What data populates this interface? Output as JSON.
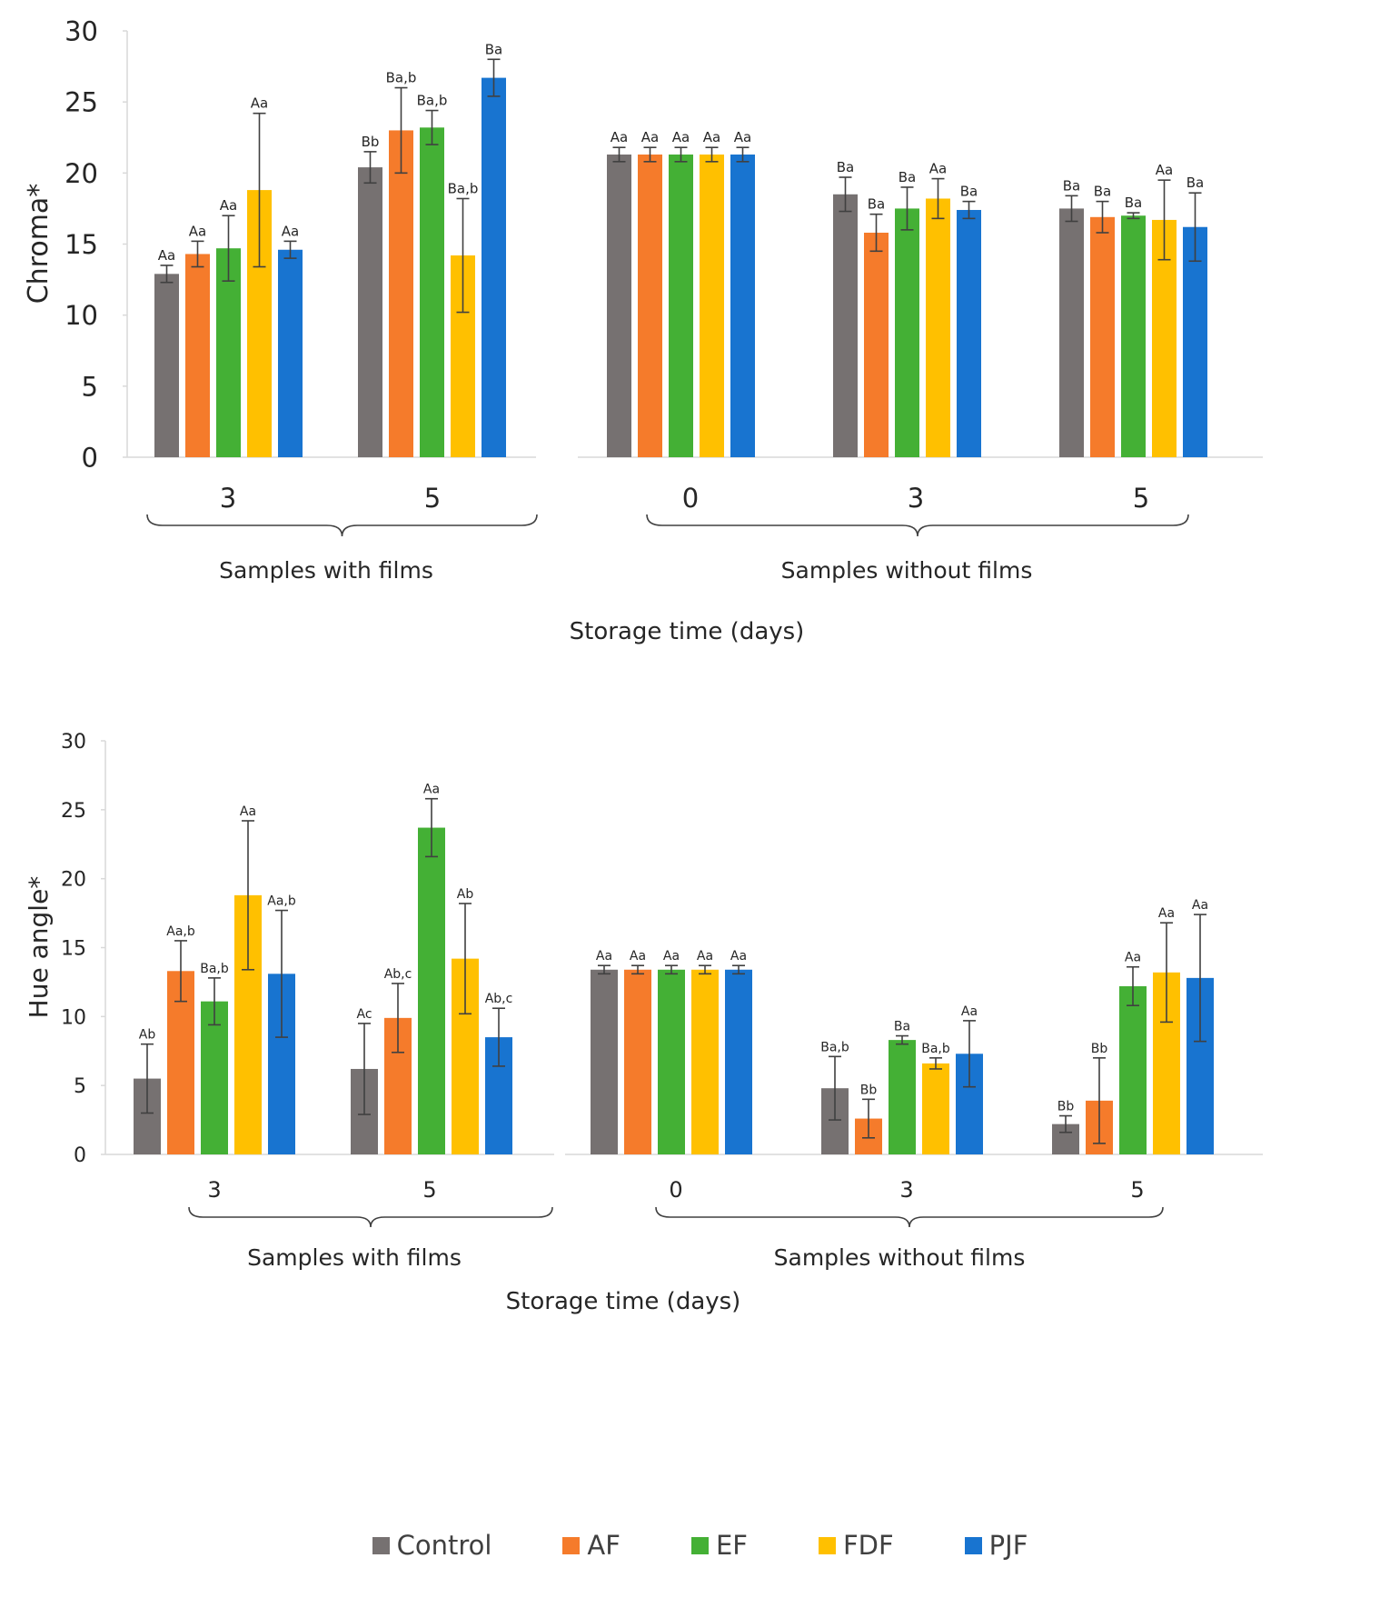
{
  "colors": {
    "Control": "#767171",
    "AF": "#f57b2b",
    "EF": "#44b035",
    "FDF": "#ffc000",
    "PJF": "#1874d0",
    "axis": "#d9d9d9",
    "text": "#262626",
    "error": "#404040"
  },
  "legend": [
    {
      "name": "Control"
    },
    {
      "name": "AF"
    },
    {
      "name": "EF"
    },
    {
      "name": "FDF"
    },
    {
      "name": "PJF"
    }
  ],
  "chart_data": [
    {
      "type": "bar",
      "ylabel": "Chroma*",
      "xlabel": "Storage time (days)",
      "ylim": [
        0,
        30
      ],
      "yticks": [
        0,
        5,
        10,
        15,
        20,
        25,
        30
      ],
      "series_names": [
        "Control",
        "AF",
        "EF",
        "FDF",
        "PJF"
      ],
      "panels": [
        {
          "group_label": "Samples with films",
          "categories": [
            {
              "label": "3",
              "values": [
                12.9,
                14.3,
                14.7,
                18.8,
                14.6
              ],
              "errors": [
                0.6,
                0.9,
                2.3,
                5.4,
                0.6
              ],
              "letters": [
                "Aa",
                "Aa",
                "Aa",
                "Aa",
                "Aa"
              ]
            },
            {
              "label": "5",
              "values": [
                20.4,
                23.0,
                23.2,
                14.2,
                26.7
              ],
              "errors": [
                1.1,
                3.0,
                1.2,
                4.0,
                1.3
              ],
              "letters": [
                "Bb",
                "Ba,b",
                "Ba,b",
                "Ba,b",
                "Ba"
              ]
            }
          ]
        },
        {
          "group_label": "Samples without films",
          "categories": [
            {
              "label": "0",
              "values": [
                21.3,
                21.3,
                21.3,
                21.3,
                21.3
              ],
              "errors": [
                0.5,
                0.5,
                0.5,
                0.5,
                0.5
              ],
              "letters": [
                "Aa",
                "Aa",
                "Aa",
                "Aa",
                "Aa"
              ]
            },
            {
              "label": "3",
              "values": [
                18.5,
                15.8,
                17.5,
                18.2,
                17.4
              ],
              "errors": [
                1.2,
                1.3,
                1.5,
                1.4,
                0.6
              ],
              "letters": [
                "Ba",
                "Ba",
                "Ba",
                "Aa",
                "Ba"
              ]
            },
            {
              "label": "5",
              "values": [
                17.5,
                16.9,
                17.0,
                16.7,
                16.2
              ],
              "errors": [
                0.9,
                1.1,
                0.2,
                2.8,
                2.4
              ],
              "letters": [
                "Ba",
                "Ba",
                "Ba",
                "Aa",
                "Ba"
              ]
            }
          ]
        }
      ]
    },
    {
      "type": "bar",
      "ylabel": "Hue angle*",
      "xlabel": "Storage time (days)",
      "ylim": [
        0,
        30
      ],
      "yticks": [
        0,
        5,
        10,
        15,
        20,
        25,
        30
      ],
      "series_names": [
        "Control",
        "AF",
        "EF",
        "FDF",
        "PJF"
      ],
      "panels": [
        {
          "group_label": "Samples with films",
          "categories": [
            {
              "label": "3",
              "values": [
                5.5,
                13.3,
                11.1,
                18.8,
                13.1
              ],
              "errors": [
                2.5,
                2.2,
                1.7,
                5.4,
                4.6
              ],
              "letters": [
                "Ab",
                "Aa,b",
                "Ba,b",
                "Aa",
                "Aa,b"
              ]
            },
            {
              "label": "5",
              "values": [
                6.2,
                9.9,
                23.7,
                14.2,
                8.5
              ],
              "errors": [
                3.3,
                2.5,
                2.1,
                4.0,
                2.1
              ],
              "letters": [
                "Ac",
                "Ab,c",
                "Aa",
                "Ab",
                "Ab,c"
              ]
            }
          ]
        },
        {
          "group_label": "Samples without films",
          "categories": [
            {
              "label": "0",
              "values": [
                13.4,
                13.4,
                13.4,
                13.4,
                13.4
              ],
              "errors": [
                0.3,
                0.3,
                0.3,
                0.3,
                0.3
              ],
              "letters": [
                "Aa",
                "Aa",
                "Aa",
                "Aa",
                "Aa"
              ]
            },
            {
              "label": "3",
              "values": [
                4.8,
                2.6,
                8.3,
                6.6,
                7.3
              ],
              "errors": [
                2.3,
                1.4,
                0.3,
                0.4,
                2.4
              ],
              "letters": [
                "Ba,b",
                "Bb",
                "Ba",
                "Ba,b",
                "Aa"
              ]
            },
            {
              "label": "5",
              "values": [
                2.2,
                3.9,
                12.2,
                13.2,
                12.8
              ],
              "errors": [
                0.6,
                3.1,
                1.4,
                3.6,
                4.6
              ],
              "letters": [
                "Bb",
                "Bb",
                "Aa",
                "Aa",
                "Aa"
              ]
            }
          ]
        }
      ]
    }
  ]
}
